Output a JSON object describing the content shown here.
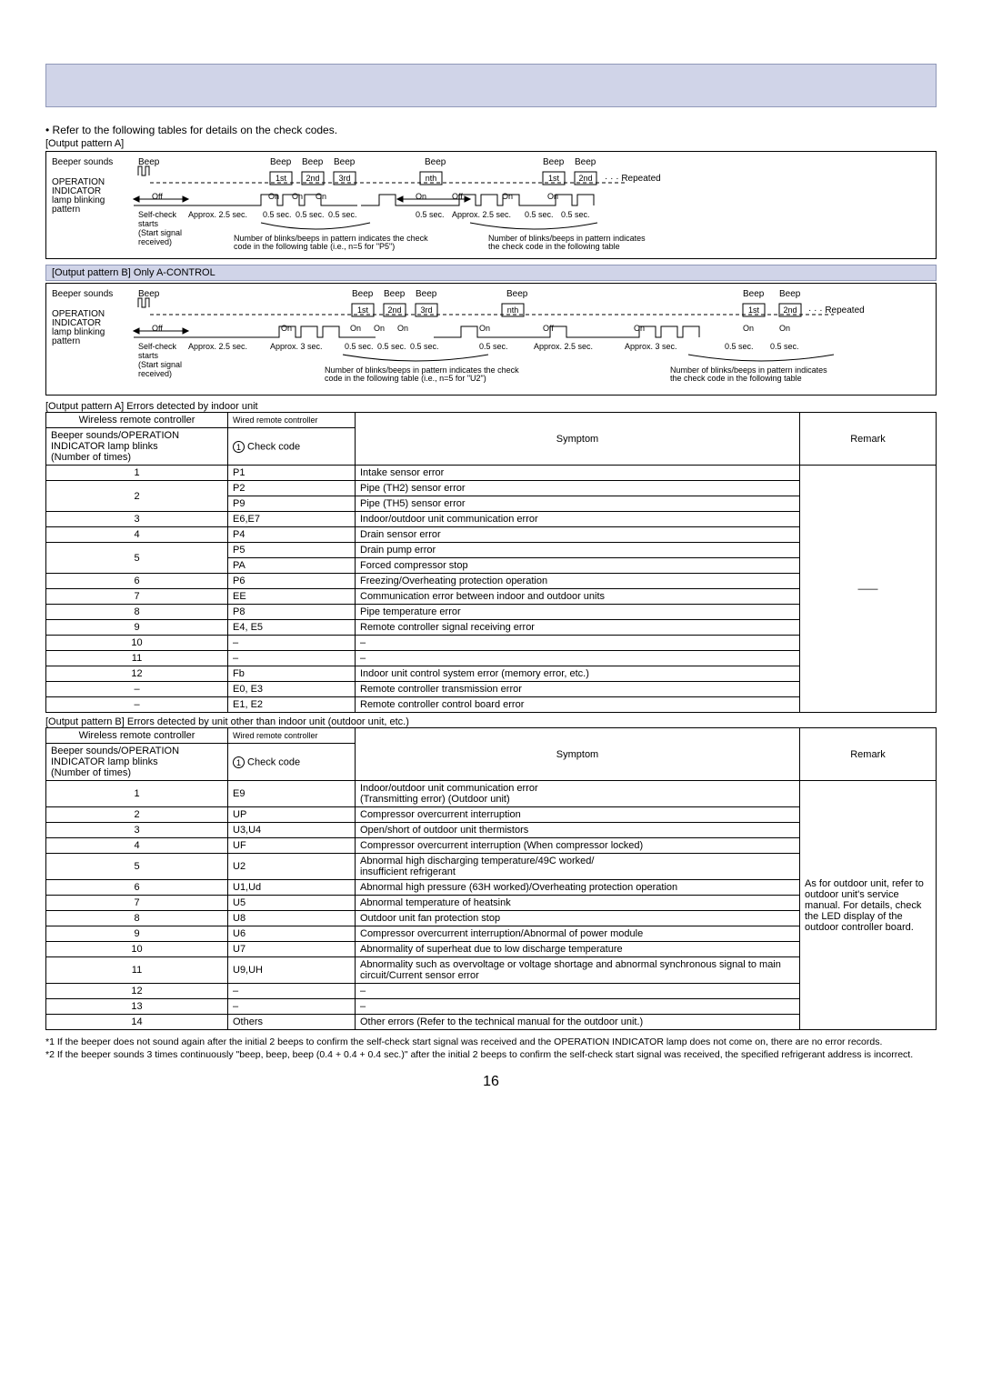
{
  "intro": "• Refer to the following tables for details on the check codes.",
  "patternA": {
    "label": "[Output pattern A]",
    "rows": {
      "beeper": "Beeper sounds",
      "opInd": "OPERATION INDICATOR lamp blinking pattern",
      "selfCheck": "Self-check starts (Start signal received)",
      "beeps": [
        "Beep",
        "Beep",
        "Beep",
        "Beep",
        "Beep",
        "Beep",
        "Beep"
      ],
      "ordinals": [
        "1st",
        "2nd",
        "3rd",
        "nth",
        "1st",
        "2nd"
      ],
      "repeated": "· · · Repeated",
      "off": "Off",
      "on": "On",
      "t25": "Approx. 2.5 sec.",
      "t05": "0.5 sec.",
      "note1": "Number of blinks/beeps in pattern indicates the check code in the following table (i.e., n=5 for \"P5\")",
      "note2": "Number of blinks/beeps in pattern indicates the check code in the following table"
    }
  },
  "patternB": {
    "label": "[Output pattern B] Only A-CONTROL",
    "rows": {
      "t3": "Approx. 3 sec.",
      "note1": "Number of blinks/beeps in pattern indicates the check code in the following table (i.e., n=5 for \"U2\")",
      "note2": "Number of blinks/beeps in pattern indicates the check code in the following table"
    }
  },
  "tableA": {
    "title": "[Output pattern A]  Errors detected by indoor unit",
    "head": {
      "c1a": "Wireless remote controller",
      "c1b": "Wired remote controller",
      "c2a": "Beeper sounds/OPERATION INDICATOR lamp blinks (Number of times)",
      "c2b": "Check code",
      "c3": "Symptom",
      "c4": "Remark"
    },
    "rows": [
      {
        "n": "1",
        "code": "P1",
        "sym": "Intake sensor error"
      },
      {
        "n": "2",
        "code": "P2",
        "sym": "Pipe (TH2) sensor error",
        "rowspan": 2
      },
      {
        "code": "P9",
        "sym": "Pipe (TH5) sensor error"
      },
      {
        "n": "3",
        "code": "E6,E7",
        "sym": "Indoor/outdoor unit communication error"
      },
      {
        "n": "4",
        "code": "P4",
        "sym": "Drain sensor error"
      },
      {
        "n": "5",
        "code": "P5",
        "sym": "Drain pump error",
        "rowspan": 2
      },
      {
        "code": "PA",
        "sym": "Forced compressor stop"
      },
      {
        "n": "6",
        "code": "P6",
        "sym": "Freezing/Overheating protection operation"
      },
      {
        "n": "7",
        "code": "EE",
        "sym": "Communication error between indoor and outdoor units"
      },
      {
        "n": "8",
        "code": "P8",
        "sym": "Pipe temperature error"
      },
      {
        "n": "9",
        "code": "E4, E5",
        "sym": "Remote controller signal receiving error"
      },
      {
        "n": "10",
        "code": "–",
        "sym": "–"
      },
      {
        "n": "11",
        "code": "–",
        "sym": "–"
      },
      {
        "n": "12",
        "code": "Fb",
        "sym": "Indoor unit control system error (memory error, etc.)"
      },
      {
        "n": "–",
        "code": "E0, E3",
        "sym": "Remote controller transmission error"
      },
      {
        "n": "–",
        "code": "E1, E2",
        "sym": "Remote controller control board error"
      }
    ],
    "remark": "——"
  },
  "tableB": {
    "title": "[Output pattern B]  Errors detected by unit other than indoor unit (outdoor unit, etc.)",
    "rows": [
      {
        "n": "1",
        "code": "E9",
        "sym": "Indoor/outdoor unit communication error\n(Transmitting error) (Outdoor unit)"
      },
      {
        "n": "2",
        "code": "UP",
        "sym": "Compressor overcurrent interruption"
      },
      {
        "n": "3",
        "code": "U3,U4",
        "sym": "Open/short of outdoor unit thermistors"
      },
      {
        "n": "4",
        "code": "UF",
        "sym": "Compressor overcurrent interruption (When compressor locked)"
      },
      {
        "n": "5",
        "code": "U2",
        "sym": "Abnormal high discharging temperature/49C worked/\ninsufficient refrigerant"
      },
      {
        "n": "6",
        "code": "U1,Ud",
        "sym": "Abnormal high pressure (63H worked)/Overheating protection operation"
      },
      {
        "n": "7",
        "code": "U5",
        "sym": "Abnormal temperature of heatsink"
      },
      {
        "n": "8",
        "code": "U8",
        "sym": "Outdoor unit fan protection stop"
      },
      {
        "n": "9",
        "code": "U6",
        "sym": "Compressor overcurrent interruption/Abnormal of power module"
      },
      {
        "n": "10",
        "code": "U7",
        "sym": "Abnormality of superheat due to low discharge temperature"
      },
      {
        "n": "11",
        "code": "U9,UH",
        "sym": "Abnormality such as overvoltage or voltage shortage and abnormal synchronous signal to main circuit/Current sensor error"
      },
      {
        "n": "12",
        "code": "–",
        "sym": "–"
      },
      {
        "n": "13",
        "code": "–",
        "sym": "–"
      },
      {
        "n": "14",
        "code": "Others",
        "sym": "Other errors (Refer to the technical manual for the outdoor unit.)"
      }
    ],
    "remark": "As for outdoor unit, refer to outdoor unit's service manual. For details, check the LED display of the outdoor controller board."
  },
  "footnotes": {
    "f1": "*1 If the beeper does not sound again after the initial 2 beeps to confirm the self-check start signal was received and the OPERATION INDICATOR lamp does not come on, there are no error records.",
    "f2": "*2 If the beeper sounds 3 times continuously \"beep, beep, beep (0.4 + 0.4 + 0.4 sec.)\" after the initial 2 beeps to confirm the self-check start signal was received, the specified refrigerant address is incorrect."
  },
  "pageNum": "16",
  "colors": {
    "band_bg": "#d0d4e8",
    "band_border": "#9098b8"
  },
  "layout": {
    "col_n": 200,
    "col_code": 140,
    "col_remark": 150
  }
}
